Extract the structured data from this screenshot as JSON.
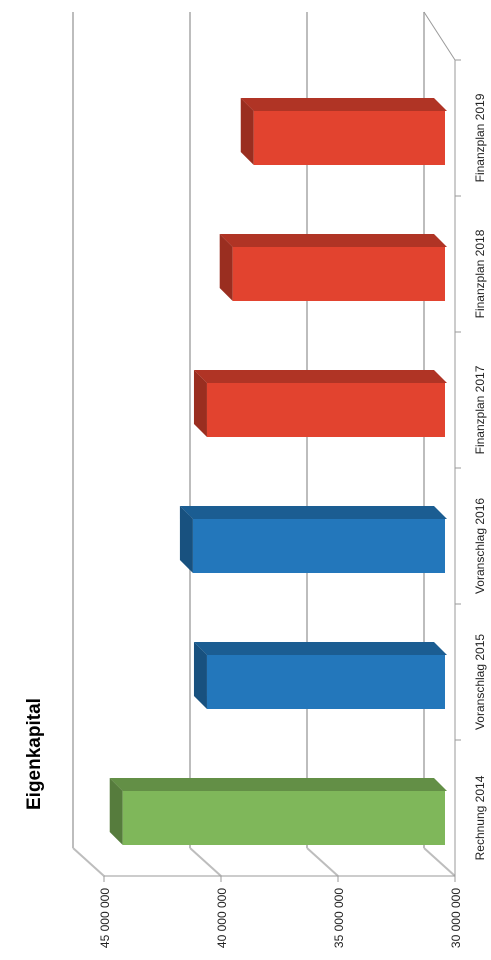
{
  "chart_data": {
    "type": "bar",
    "orientation": "vertical (rotated 90° counter-clockwise, 3D bars)",
    "title": "Eigenkapital",
    "categories": [
      "Rechnung 2014",
      "Voranschlag 2015",
      "Voranschlag 2016",
      "Finanzplan 2017",
      "Finanzplan 2018",
      "Finanzplan 2019"
    ],
    "values": [
      44200000,
      40600000,
      41200000,
      40600000,
      39500000,
      38600000
    ],
    "bar_colors": [
      "#7fb75a",
      "#2377bb",
      "#2377bb",
      "#e2432f",
      "#e2432f",
      "#e2432f"
    ],
    "ylim": [
      30000000,
      45000000
    ],
    "y_ticks": [
      "30 000 000",
      "35 000 000",
      "40 000 000",
      "45 000 000"
    ],
    "y_tick_values": [
      30000000,
      35000000,
      40000000,
      45000000
    ],
    "grid": true
  }
}
